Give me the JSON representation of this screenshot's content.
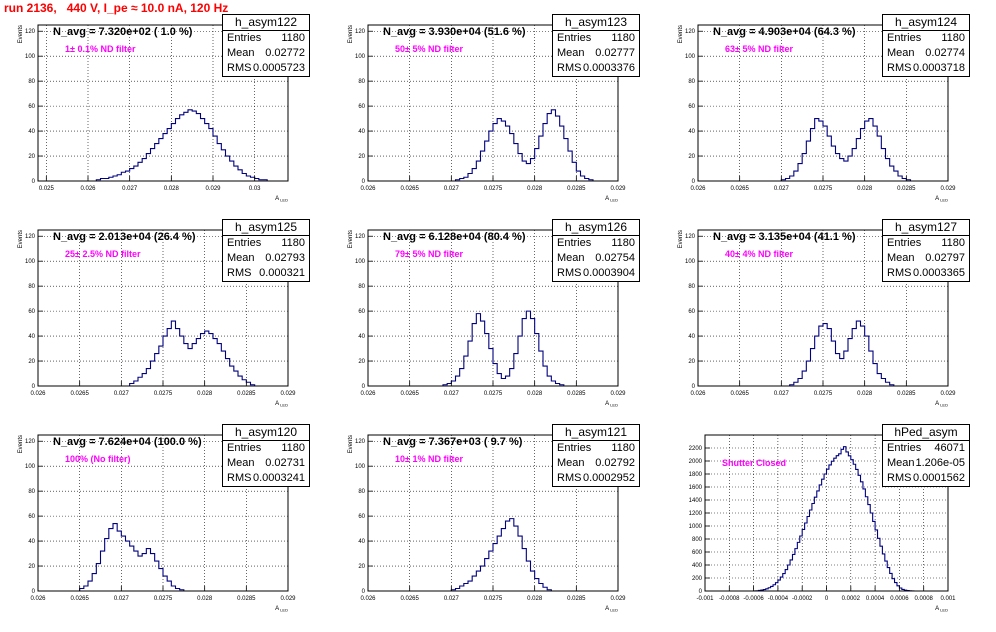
{
  "page": {
    "title": "run 2136,   440 V, I_pe ≈ 10.0 nA, 120 Hz"
  },
  "colors": {
    "title": "#ff0000",
    "histogram": "#000080",
    "annotation": "#ff00ff",
    "grid": "#000000"
  },
  "panels": [
    {
      "name": "h_asym122",
      "n_avg": "N_avg = 7.320e+02 ( 1.0 %)",
      "filter": "1± 0.1% ND filter",
      "entries": "1180",
      "mean": "0.02772",
      "rms": "0.0005723"
    },
    {
      "name": "h_asym123",
      "n_avg": "N_avg = 3.930e+04 (51.6 %)",
      "filter": "50± 5% ND filter",
      "entries": "1180",
      "mean": "0.02777",
      "rms": "0.0003376"
    },
    {
      "name": "h_asym124",
      "n_avg": "N_avg = 4.903e+04 (64.3 %)",
      "filter": "63± 5% ND filter",
      "entries": "1180",
      "mean": "0.02774",
      "rms": "0.0003718"
    },
    {
      "name": "h_asym125",
      "n_avg": "N_avg = 2.013e+04 (26.4 %)",
      "filter": "25± 2.5% ND filter",
      "entries": "1180",
      "mean": "0.02793",
      "rms": "0.000321"
    },
    {
      "name": "h_asym126",
      "n_avg": "N_avg = 6.128e+04 (80.4 %)",
      "filter": "79± 5% ND filter",
      "entries": "1180",
      "mean": "0.02754",
      "rms": "0.0003904"
    },
    {
      "name": "h_asym127",
      "n_avg": "N_avg = 3.135e+04 (41.1 %)",
      "filter": "40± 4% ND filter",
      "entries": "1180",
      "mean": "0.02797",
      "rms": "0.0003365"
    },
    {
      "name": "h_asym120",
      "n_avg": "N_avg = 7.624e+04 (100.0 %)",
      "filter": "100% (No filter)",
      "entries": "1180",
      "mean": "0.02731",
      "rms": "0.0003241"
    },
    {
      "name": "h_asym121",
      "n_avg": "N_avg = 7.367e+03 ( 9.7 %)",
      "filter": "10± 1% ND filter",
      "entries": "1180",
      "mean": "0.02792",
      "rms": "0.0002952"
    },
    {
      "name": "hPed_asym",
      "n_avg": "",
      "filter": "Shutter Closed",
      "entries": "46071",
      "mean": "1.206e-05",
      "rms": "0.0001562"
    }
  ],
  "chart_data": [
    {
      "type": "bar",
      "title": "h_asym122",
      "xlabel": "A_LED",
      "ylabel": "Events",
      "xlim": [
        0.0248,
        0.0308
      ],
      "ylim": [
        0,
        125
      ],
      "grid": true,
      "xticks": [
        "0.025",
        "0.026",
        "0.027",
        "0.028",
        "0.029",
        "0.03"
      ],
      "xtick_values": [
        0.025,
        0.026,
        0.027,
        0.028,
        0.029,
        0.03
      ],
      "yticks": [
        "0",
        "20",
        "40",
        "60",
        "80",
        "100",
        "120"
      ],
      "ytick_values": [
        0,
        20,
        40,
        60,
        80,
        100,
        120
      ],
      "hist": {
        "x0": 0.0262,
        "width": 0.0001,
        "values": [
          1,
          2,
          2,
          3,
          4,
          5,
          7,
          8,
          10,
          12,
          15,
          18,
          22,
          26,
          30,
          34,
          38,
          42,
          46,
          50,
          53,
          55,
          57,
          56,
          54,
          50,
          46,
          42,
          36,
          30,
          25,
          20,
          16,
          12,
          9,
          6,
          4,
          3,
          2,
          1,
          1
        ]
      }
    },
    {
      "type": "bar",
      "title": "h_asym123",
      "xlabel": "A_LED",
      "ylabel": "Events",
      "xlim": [
        0.026,
        0.029
      ],
      "ylim": [
        0,
        125
      ],
      "grid": true,
      "xticks": [
        "0.026",
        "0.0265",
        "0.027",
        "0.0275",
        "0.028",
        "0.0285",
        "0.029"
      ],
      "xtick_values": [
        0.026,
        0.0265,
        0.027,
        0.0275,
        0.028,
        0.0285,
        0.029
      ],
      "yticks": [
        "0",
        "20",
        "40",
        "60",
        "80",
        "100",
        "120"
      ],
      "ytick_values": [
        0,
        20,
        40,
        60,
        80,
        100,
        120
      ],
      "hist": {
        "x0": 0.02705,
        "width": 5e-05,
        "values": [
          1,
          2,
          3,
          6,
          10,
          16,
          24,
          32,
          40,
          46,
          50,
          48,
          44,
          38,
          30,
          22,
          16,
          14,
          18,
          26,
          36,
          46,
          54,
          57,
          52,
          44,
          34,
          24,
          15,
          8,
          4,
          2,
          1
        ]
      }
    },
    {
      "type": "bar",
      "title": "h_asym124",
      "xlabel": "A_LED",
      "ylabel": "Events",
      "xlim": [
        0.026,
        0.029
      ],
      "ylim": [
        0,
        125
      ],
      "grid": true,
      "xticks": [
        "0.026",
        "0.0265",
        "0.027",
        "0.0275",
        "0.028",
        "0.0285",
        "0.029"
      ],
      "xtick_values": [
        0.026,
        0.0265,
        0.027,
        0.0275,
        0.028,
        0.0285,
        0.029
      ],
      "yticks": [
        "0",
        "20",
        "40",
        "60",
        "80",
        "100",
        "120"
      ],
      "ytick_values": [
        0,
        20,
        40,
        60,
        80,
        100,
        120
      ],
      "hist": {
        "x0": 0.027,
        "width": 5e-05,
        "values": [
          1,
          2,
          4,
          8,
          14,
          22,
          32,
          42,
          50,
          48,
          44,
          36,
          28,
          22,
          18,
          16,
          20,
          26,
          34,
          42,
          48,
          50,
          44,
          36,
          26,
          18,
          12,
          8,
          4,
          2,
          1
        ]
      }
    },
    {
      "type": "bar",
      "title": "h_asym125",
      "xlabel": "A_LED",
      "ylabel": "Events",
      "xlim": [
        0.026,
        0.029
      ],
      "ylim": [
        0,
        125
      ],
      "grid": true,
      "xticks": [
        "0.026",
        "0.0265",
        "0.027",
        "0.0275",
        "0.028",
        "0.0285",
        "0.029"
      ],
      "xtick_values": [
        0.026,
        0.0265,
        0.027,
        0.0275,
        0.028,
        0.0285,
        0.029
      ],
      "yticks": [
        "0",
        "20",
        "40",
        "60",
        "80",
        "100",
        "120"
      ],
      "ytick_values": [
        0,
        20,
        40,
        60,
        80,
        100,
        120
      ],
      "hist": {
        "x0": 0.0271,
        "width": 5e-05,
        "values": [
          2,
          4,
          7,
          10,
          14,
          20,
          26,
          32,
          40,
          46,
          52,
          46,
          40,
          34,
          30,
          34,
          38,
          42,
          44,
          42,
          38,
          34,
          28,
          22,
          16,
          12,
          8,
          5,
          3,
          1
        ]
      }
    },
    {
      "type": "bar",
      "title": "h_asym126",
      "xlabel": "A_LED",
      "ylabel": "Events",
      "xlim": [
        0.026,
        0.029
      ],
      "ylim": [
        0,
        125
      ],
      "grid": true,
      "xticks": [
        "0.026",
        "0.0265",
        "0.027",
        "0.0275",
        "0.028",
        "0.0285",
        "0.029"
      ],
      "xtick_values": [
        0.026,
        0.0265,
        0.027,
        0.0275,
        0.028,
        0.0285,
        0.029
      ],
      "yticks": [
        "0",
        "20",
        "40",
        "60",
        "80",
        "100",
        "120"
      ],
      "ytick_values": [
        0,
        20,
        40,
        60,
        80,
        100,
        120
      ],
      "hist": {
        "x0": 0.0269,
        "width": 5e-05,
        "values": [
          1,
          2,
          4,
          8,
          14,
          24,
          36,
          50,
          58,
          52,
          42,
          30,
          18,
          10,
          6,
          8,
          14,
          26,
          40,
          54,
          60,
          54,
          42,
          28,
          16,
          8,
          4,
          2,
          1
        ]
      }
    },
    {
      "type": "bar",
      "title": "h_asym127",
      "xlabel": "A_LED",
      "ylabel": "Events",
      "xlim": [
        0.026,
        0.029
      ],
      "ylim": [
        0,
        125
      ],
      "grid": true,
      "xticks": [
        "0.026",
        "0.0265",
        "0.027",
        "0.0275",
        "0.028",
        "0.0285",
        "0.029"
      ],
      "xtick_values": [
        0.026,
        0.0265,
        0.027,
        0.0275,
        0.028,
        0.0285,
        0.029
      ],
      "yticks": [
        "0",
        "20",
        "40",
        "60",
        "80",
        "100",
        "120"
      ],
      "ytick_values": [
        0,
        20,
        40,
        60,
        80,
        100,
        120
      ],
      "hist": {
        "x0": 0.0271,
        "width": 5e-05,
        "values": [
          1,
          3,
          6,
          12,
          20,
          30,
          40,
          48,
          50,
          46,
          36,
          26,
          22,
          28,
          38,
          46,
          52,
          48,
          40,
          28,
          18,
          10,
          6,
          3,
          1
        ]
      }
    },
    {
      "type": "bar",
      "title": "h_asym120",
      "xlabel": "A_LED",
      "ylabel": "Events",
      "xlim": [
        0.026,
        0.029
      ],
      "ylim": [
        0,
        125
      ],
      "grid": true,
      "xticks": [
        "0.026",
        "0.0265",
        "0.027",
        "0.0275",
        "0.028",
        "0.0285",
        "0.029"
      ],
      "xtick_values": [
        0.026,
        0.0265,
        0.027,
        0.0275,
        0.028,
        0.0285,
        0.029
      ],
      "yticks": [
        "0",
        "20",
        "40",
        "60",
        "80",
        "100",
        "120"
      ],
      "ytick_values": [
        0,
        20,
        40,
        60,
        80,
        100,
        120
      ],
      "hist": {
        "x0": 0.0265,
        "width": 5e-05,
        "values": [
          2,
          4,
          8,
          14,
          22,
          32,
          42,
          50,
          54,
          48,
          44,
          40,
          36,
          32,
          28,
          30,
          34,
          30,
          24,
          18,
          12,
          8,
          4,
          2,
          1
        ]
      }
    },
    {
      "type": "bar",
      "title": "h_asym121",
      "xlabel": "A_LED",
      "ylabel": "Events",
      "xlim": [
        0.026,
        0.029
      ],
      "ylim": [
        0,
        125
      ],
      "grid": true,
      "xticks": [
        "0.026",
        "0.0265",
        "0.027",
        "0.0275",
        "0.028",
        "0.0285",
        "0.029"
      ],
      "xtick_values": [
        0.026,
        0.0265,
        0.027,
        0.0275,
        0.028,
        0.0285,
        0.029
      ],
      "yticks": [
        "0",
        "20",
        "40",
        "60",
        "80",
        "100",
        "120"
      ],
      "ytick_values": [
        0,
        20,
        40,
        60,
        80,
        100,
        120
      ],
      "hist": {
        "x0": 0.027,
        "width": 5e-05,
        "values": [
          1,
          2,
          4,
          6,
          8,
          12,
          16,
          20,
          26,
          32,
          38,
          44,
          50,
          56,
          58,
          52,
          44,
          34,
          24,
          16,
          10,
          6,
          3,
          1
        ]
      }
    },
    {
      "type": "bar",
      "title": "hPed_asym",
      "xlabel": "A_LED",
      "ylabel": "",
      "xlim": [
        -0.001,
        0.001
      ],
      "ylim": [
        0,
        2400
      ],
      "grid": true,
      "xticks": [
        "-0.001",
        "-0.0008",
        "-0.0006",
        "-0.0004",
        "-0.0002",
        "0",
        "0.0002",
        "0.0004",
        "0.0006",
        "0.0008",
        "0.001"
      ],
      "xtick_values": [
        -0.001,
        -0.0008,
        -0.0006,
        -0.0004,
        -0.0002,
        0,
        0.0002,
        0.0004,
        0.0006,
        0.0008,
        0.001
      ],
      "yticks": [
        "0",
        "200",
        "400",
        "600",
        "800",
        "1000",
        "1200",
        "1400",
        "1600",
        "1800",
        "2000",
        "2200"
      ],
      "ytick_values": [
        0,
        200,
        400,
        600,
        800,
        1000,
        1200,
        1400,
        1600,
        1800,
        2000,
        2200
      ],
      "hist": {
        "x0": -0.0006,
        "width": 2e-05,
        "values": [
          2,
          4,
          8,
          14,
          22,
          34,
          50,
          70,
          96,
          128,
          168,
          214,
          268,
          330,
          400,
          478,
          562,
          652,
          748,
          846,
          946,
          1046,
          1146,
          1246,
          1346,
          1444,
          1540,
          1632,
          1720,
          1800,
          1874,
          1940,
          1996,
          2044,
          2082,
          2110,
          2180,
          2220,
          2140,
          2080,
          2020,
          1950,
          1870,
          1780,
          1680,
          1570,
          1450,
          1330,
          1200,
          1070,
          940,
          810,
          690,
          570,
          460,
          360,
          270,
          190,
          130,
          80,
          46,
          24,
          12,
          6,
          3,
          1
        ]
      }
    }
  ]
}
